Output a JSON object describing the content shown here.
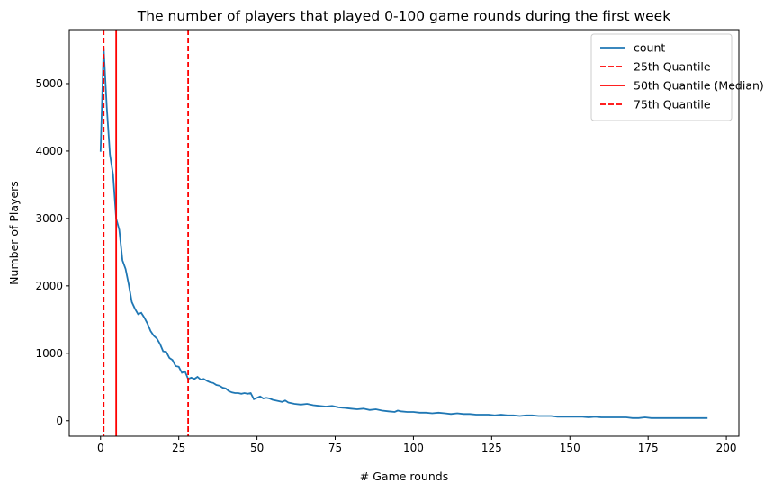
{
  "chart_data": {
    "type": "line",
    "title": "The number of players that played 0-100 game rounds during the first week",
    "xlabel": "# Game rounds",
    "ylabel": "Number of Players",
    "xlim": [
      -10,
      204
    ],
    "ylim": [
      -230,
      5800
    ],
    "xticks": [
      0,
      25,
      50,
      75,
      100,
      125,
      150,
      175,
      200
    ],
    "yticks": [
      0,
      1000,
      2000,
      3000,
      4000,
      5000
    ],
    "grid": false,
    "legend_position": "top-right",
    "series": [
      {
        "name": "count",
        "color": "#1f77b4",
        "style": "solid",
        "x": [
          0,
          1,
          2,
          3,
          4,
          5,
          6,
          7,
          8,
          9,
          10,
          11,
          12,
          13,
          14,
          15,
          16,
          17,
          18,
          19,
          20,
          21,
          22,
          23,
          24,
          25,
          26,
          27,
          28,
          29,
          30,
          31,
          32,
          33,
          34,
          35,
          36,
          37,
          38,
          39,
          40,
          41,
          42,
          43,
          44,
          45,
          46,
          47,
          48,
          49,
          50,
          51,
          52,
          53,
          54,
          55,
          56,
          57,
          58,
          59,
          60,
          62,
          64,
          66,
          68,
          70,
          72,
          74,
          76,
          78,
          80,
          82,
          84,
          86,
          88,
          90,
          92,
          94,
          95,
          96,
          98,
          100,
          102,
          104,
          106,
          108,
          110,
          112,
          114,
          116,
          118,
          120,
          122,
          124,
          126,
          128,
          130,
          132,
          134,
          136,
          138,
          140,
          142,
          144,
          146,
          148,
          150,
          152,
          154,
          156,
          158,
          160,
          162,
          164,
          166,
          168,
          170,
          172,
          174,
          176,
          178,
          180,
          182,
          184,
          186,
          188,
          190,
          192,
          194
        ],
        "y": [
          3990,
          5540,
          4650,
          3950,
          3650,
          3000,
          2830,
          2380,
          2250,
          2020,
          1760,
          1660,
          1580,
          1600,
          1530,
          1440,
          1330,
          1260,
          1220,
          1140,
          1030,
          1020,
          930,
          900,
          810,
          800,
          710,
          730,
          620,
          640,
          620,
          650,
          610,
          620,
          590,
          570,
          560,
          530,
          520,
          490,
          480,
          440,
          420,
          410,
          410,
          400,
          410,
          400,
          410,
          320,
          340,
          360,
          330,
          340,
          330,
          310,
          300,
          290,
          280,
          300,
          270,
          250,
          240,
          250,
          230,
          220,
          210,
          220,
          200,
          190,
          180,
          170,
          180,
          160,
          170,
          150,
          140,
          130,
          150,
          140,
          130,
          130,
          120,
          120,
          110,
          120,
          110,
          100,
          110,
          100,
          100,
          90,
          90,
          90,
          80,
          90,
          80,
          80,
          70,
          80,
          80,
          70,
          70,
          70,
          60,
          60,
          60,
          60,
          60,
          50,
          60,
          50,
          50,
          50,
          50,
          50,
          40,
          40,
          50,
          40,
          40,
          40,
          40,
          40,
          40,
          40,
          40,
          40,
          40
        ]
      },
      {
        "name": "25th Quantile",
        "color": "#ff0000",
        "style": "dashed",
        "x_value": 1
      },
      {
        "name": "50th Quantile (Median)",
        "color": "#ff0000",
        "style": "solid",
        "x_value": 5
      },
      {
        "name": "75th Quantile",
        "color": "#ff0000",
        "style": "dashed",
        "x_value": 28
      }
    ]
  }
}
